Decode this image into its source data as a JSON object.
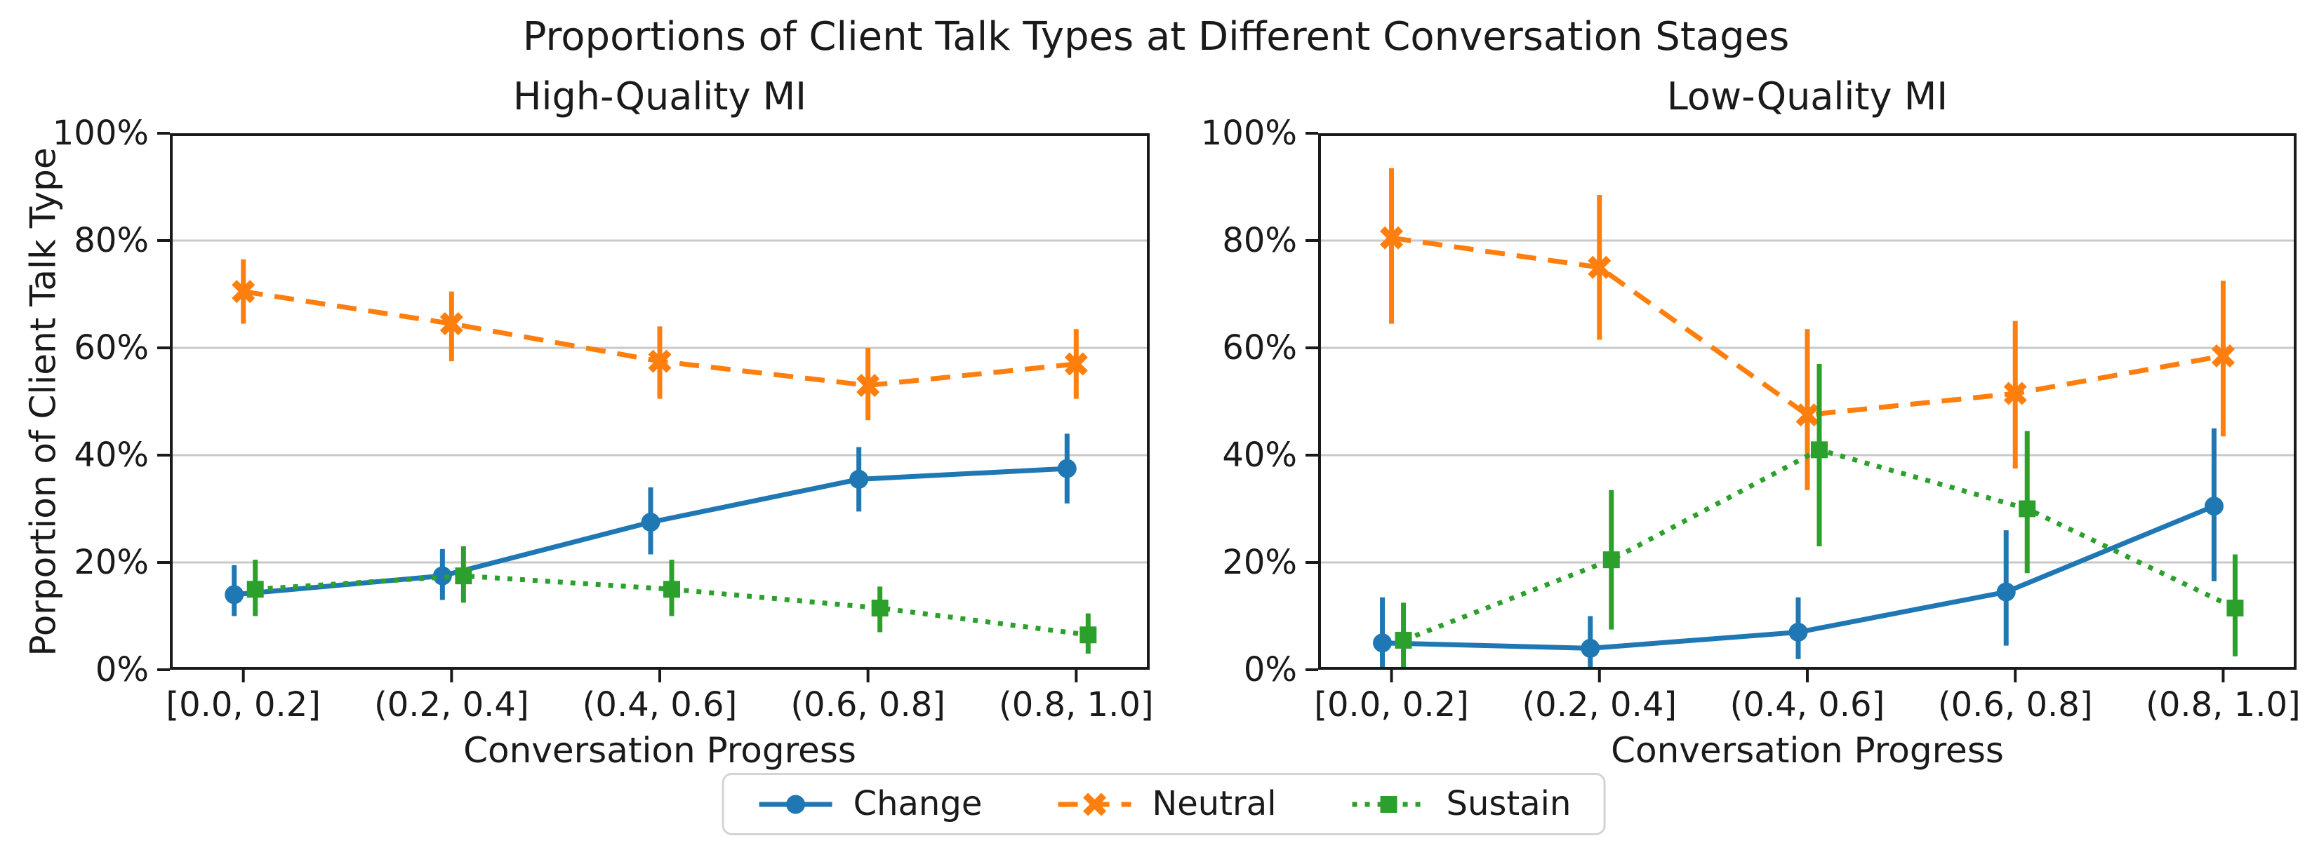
{
  "figure": {
    "title": "Proportions of Client Talk Types at Different Conversation Stages",
    "background": "#ffffff",
    "text_color": "#1a1a1a",
    "grid_color": "#c9c9c9",
    "spine_color": "#1a1a1a"
  },
  "legend": {
    "items": [
      {
        "label": "Change",
        "color": "#1f77b4",
        "marker": "circle",
        "line": "solid"
      },
      {
        "label": "Neutral",
        "color": "#ff7f0e",
        "marker": "x",
        "line": "dashed"
      },
      {
        "label": "Sustain",
        "color": "#2ca02c",
        "marker": "square",
        "line": "dotted"
      }
    ]
  },
  "chart_data": [
    {
      "type": "line",
      "title": "High-Quality MI",
      "xlabel": "Conversation Progress",
      "ylabel": "Porportion of Client Talk Type",
      "categories": [
        "[0.0, 0.2]",
        "(0.2, 0.4]",
        "(0.4, 0.6]",
        "(0.6, 0.8]",
        "(0.8, 1.0]"
      ],
      "ylim": [
        0,
        100
      ],
      "yticks": [
        0,
        20,
        40,
        60,
        80,
        100
      ],
      "ytick_labels": [
        "0%",
        "20%",
        "40%",
        "60%",
        "80%",
        "100%"
      ],
      "grid": true,
      "series": [
        {
          "name": "Change",
          "color": "#1f77b4",
          "marker": "circle",
          "line": "solid",
          "values": [
            14,
            17.5,
            27.5,
            35.5,
            37.5
          ],
          "ci_low": [
            10,
            13,
            21.5,
            29.5,
            31
          ],
          "ci_high": [
            19.5,
            22.5,
            34,
            41.5,
            44
          ]
        },
        {
          "name": "Neutral",
          "color": "#ff7f0e",
          "marker": "x",
          "line": "dashed",
          "values": [
            70.5,
            64.5,
            57.5,
            53,
            57
          ],
          "ci_low": [
            64.5,
            57.5,
            50.5,
            46.5,
            50.5
          ],
          "ci_high": [
            76.5,
            70.5,
            64,
            60,
            63.5
          ]
        },
        {
          "name": "Sustain",
          "color": "#2ca02c",
          "marker": "square",
          "line": "dotted",
          "values": [
            15,
            17.5,
            15,
            11.5,
            6.5
          ],
          "ci_low": [
            10,
            12.5,
            10,
            7,
            3
          ],
          "ci_high": [
            20.5,
            23,
            20.5,
            15.5,
            10.5
          ]
        }
      ]
    },
    {
      "type": "line",
      "title": "Low-Quality MI",
      "xlabel": "Conversation Progress",
      "ylabel": "",
      "categories": [
        "[0.0, 0.2]",
        "(0.2, 0.4]",
        "(0.4, 0.6]",
        "(0.6, 0.8]",
        "(0.8, 1.0]"
      ],
      "ylim": [
        0,
        100
      ],
      "yticks": [
        0,
        20,
        40,
        60,
        80,
        100
      ],
      "ytick_labels": [
        "0%",
        "20%",
        "40%",
        "60%",
        "80%",
        "100%"
      ],
      "grid": true,
      "series": [
        {
          "name": "Change",
          "color": "#1f77b4",
          "marker": "circle",
          "line": "solid",
          "values": [
            5,
            4,
            7,
            14.5,
            30.5
          ],
          "ci_low": [
            0,
            0,
            2,
            4.5,
            16.5
          ],
          "ci_high": [
            13.5,
            10,
            13.5,
            26,
            45
          ]
        },
        {
          "name": "Neutral",
          "color": "#ff7f0e",
          "marker": "x",
          "line": "dashed",
          "values": [
            80.5,
            75,
            47.5,
            51.5,
            58.5
          ],
          "ci_low": [
            64.5,
            61.5,
            33.5,
            37.5,
            43.5
          ],
          "ci_high": [
            93.5,
            88.5,
            63.5,
            65,
            72.5
          ]
        },
        {
          "name": "Sustain",
          "color": "#2ca02c",
          "marker": "square",
          "line": "dotted",
          "values": [
            5.5,
            20.5,
            41,
            30,
            11.5
          ],
          "ci_low": [
            0,
            7.5,
            23,
            18,
            2.5
          ],
          "ci_high": [
            12.5,
            33.5,
            57,
            44.5,
            21.5
          ]
        }
      ]
    }
  ]
}
